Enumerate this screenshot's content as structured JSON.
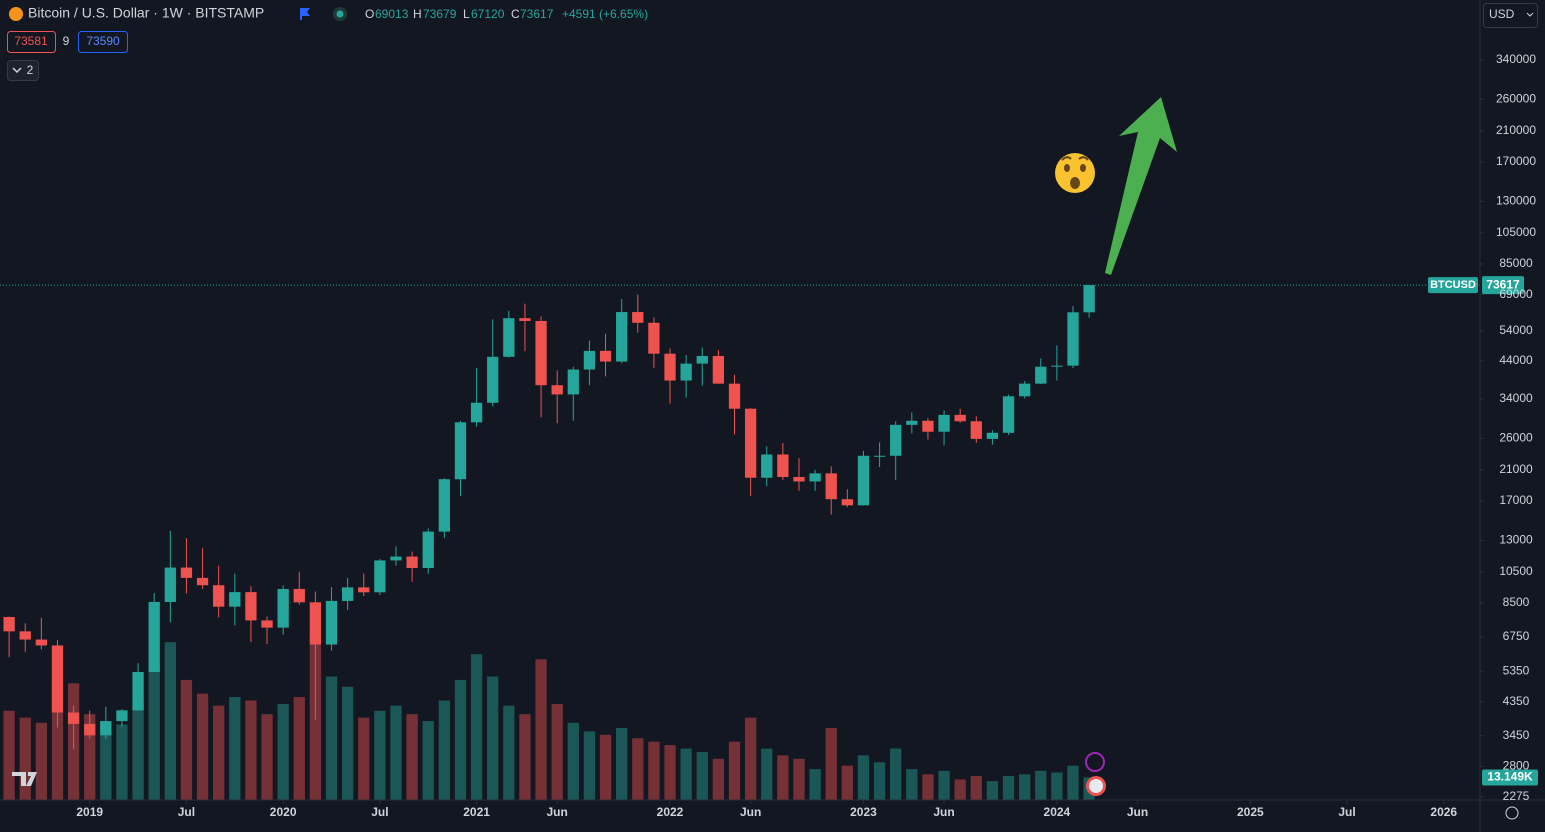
{
  "chart_data": {
    "type": "candlestick",
    "title": "Bitcoin / U.S. Dollar · 1W · BITSTAMP",
    "legend": [
      {
        "label": "O",
        "value": 69013
      },
      {
        "label": "H",
        "value": 73679
      },
      {
        "label": "L",
        "value": 67120
      },
      {
        "label": "C",
        "value": 73617
      }
    ],
    "change_label": "+4591 (+6.65%)",
    "bid": 73581,
    "spread": 9,
    "ask": 73590,
    "indicators_count": 2,
    "currency": "USD",
    "symbol": "BTCUSD",
    "last_price": 73617,
    "volume_label": "13.149K",
    "log_scale": true,
    "colors": {
      "up": "#26a69a",
      "down": "#ef5350"
    },
    "xlim": [
      "2018-07",
      "2026-03"
    ],
    "xticks": [
      {
        "value": "2019-01",
        "label": "2019"
      },
      {
        "value": "2019-07",
        "label": "Jul"
      },
      {
        "value": "2020-01",
        "label": "2020"
      },
      {
        "value": "2020-07",
        "label": "Jul"
      },
      {
        "value": "2021-01",
        "label": "2021"
      },
      {
        "value": "2021-06",
        "label": "Jun"
      },
      {
        "value": "2022-01",
        "label": "2022"
      },
      {
        "value": "2022-06",
        "label": "Jun"
      },
      {
        "value": "2023-01",
        "label": "2023"
      },
      {
        "value": "2023-06",
        "label": "Jun"
      },
      {
        "value": "2024-01",
        "label": "2024"
      },
      {
        "value": "2024-06",
        "label": "Jun"
      },
      {
        "value": "2025-01",
        "label": "2025"
      },
      {
        "value": "2025-07",
        "label": "Jul"
      },
      {
        "value": "2026-01",
        "label": "2026"
      }
    ],
    "ylim": [
      2230,
      422000
    ],
    "yticks": [
      340000,
      260000,
      210000,
      170000,
      130000,
      105000,
      85000,
      69000,
      54000,
      44000,
      34000,
      26000,
      21000,
      17000,
      13000,
      10500,
      8500,
      6750,
      5350,
      4350,
      3450,
      2800,
      2275
    ],
    "volume_ylim": [
      0,
      450000
    ],
    "x": [
      "2018-08",
      "2018-09",
      "2018-10",
      "2018-11",
      "2018-12",
      "2019-01",
      "2019-02",
      "2019-03",
      "2019-04",
      "2019-05",
      "2019-06",
      "2019-07",
      "2019-08",
      "2019-09",
      "2019-10",
      "2019-11",
      "2019-12",
      "2020-01",
      "2020-02",
      "2020-03",
      "2020-04",
      "2020-05",
      "2020-06",
      "2020-07",
      "2020-08",
      "2020-09",
      "2020-10",
      "2020-11",
      "2020-12",
      "2021-01",
      "2021-02",
      "2021-03",
      "2021-04",
      "2021-05",
      "2021-06",
      "2021-07",
      "2021-08",
      "2021-09",
      "2021-10",
      "2021-11",
      "2021-12",
      "2022-01",
      "2022-02",
      "2022-03",
      "2022-04",
      "2022-05",
      "2022-06",
      "2022-07",
      "2022-08",
      "2022-09",
      "2022-10",
      "2022-11",
      "2022-12",
      "2023-01",
      "2023-02",
      "2023-03",
      "2023-04",
      "2023-05",
      "2023-06",
      "2023-07",
      "2023-08",
      "2023-09",
      "2023-10",
      "2023-11",
      "2023-12",
      "2024-01",
      "2024-02",
      "2024-03"
    ],
    "open": [
      7730,
      7010,
      6630,
      6370,
      4040,
      3740,
      3460,
      3810,
      4100,
      5320,
      8560,
      10810,
      10080,
      9590,
      8290,
      9150,
      7550,
      7190,
      9350,
      8540,
      6410,
      8620,
      9450,
      9140,
      11350,
      11650,
      10780,
      13800,
      19700,
      28990,
      33110,
      45240,
      58800,
      57700,
      37300,
      35040,
      41500,
      47100,
      43800,
      61300,
      57000,
      46200,
      38500,
      43200,
      45500,
      37700,
      31800,
      19900,
      23300,
      20000,
      19400,
      20500,
      17200,
      16500,
      23100,
      23100,
      28500,
      29300,
      27200,
      30500,
      29200,
      25900,
      27000,
      34600,
      37700,
      42300,
      42600,
      61200
    ],
    "high": [
      7750,
      7400,
      7680,
      6600,
      4240,
      4090,
      4200,
      4140,
      5650,
      9090,
      13880,
      13200,
      12330,
      10950,
      10370,
      9530,
      7750,
      9590,
      10500,
      9190,
      9470,
      10070,
      10380,
      11450,
      12480,
      12050,
      14100,
      19860,
      29300,
      41950,
      58350,
      61780,
      64900,
      59500,
      41300,
      42300,
      50500,
      52900,
      67000,
      69000,
      59100,
      47900,
      45800,
      48200,
      47400,
      40000,
      31900,
      24600,
      25200,
      22700,
      21000,
      21500,
      18400,
      23900,
      25300,
      29200,
      31000,
      29800,
      31400,
      31800,
      30200,
      27500,
      35000,
      38400,
      44700,
      48900,
      63900,
      73679
    ],
    "low": [
      5880,
      6100,
      6200,
      3650,
      3150,
      3390,
      3380,
      3670,
      4090,
      5330,
      7450,
      9070,
      9350,
      7710,
      7300,
      6520,
      6430,
      6850,
      8410,
      3850,
      6150,
      8100,
      8910,
      8980,
      10950,
      9820,
      10370,
      13200,
      17600,
      28130,
      32300,
      45000,
      47000,
      30000,
      28800,
      29300,
      37300,
      39600,
      43300,
      53300,
      42000,
      32900,
      34300,
      37200,
      37700,
      26700,
      17600,
      18800,
      19600,
      18200,
      18200,
      15500,
      16300,
      16500,
      21400,
      19600,
      26900,
      25800,
      24800,
      28900,
      25200,
      24900,
      26600,
      34100,
      37600,
      38500,
      41900,
      59000
    ],
    "close": [
      7010,
      6630,
      6370,
      4040,
      3740,
      3460,
      3810,
      4100,
      5320,
      8560,
      10810,
      10080,
      9590,
      8290,
      9150,
      7550,
      7190,
      9350,
      8540,
      6410,
      8620,
      9450,
      9140,
      11350,
      11650,
      10780,
      13800,
      19700,
      28990,
      33110,
      45240,
      58800,
      57700,
      37300,
      35040,
      41500,
      47100,
      43800,
      61300,
      57000,
      46200,
      38500,
      43200,
      45500,
      37700,
      31800,
      19900,
      23300,
      20000,
      19400,
      20500,
      17200,
      16500,
      23100,
      23100,
      28500,
      29300,
      27200,
      30500,
      29200,
      25900,
      27000,
      34600,
      37700,
      42300,
      42600,
      61200,
      73617
    ],
    "volume": [
      52000,
      48000,
      45000,
      70000,
      68000,
      50000,
      46000,
      44000,
      58000,
      80000,
      92000,
      70000,
      62000,
      55000,
      60000,
      58000,
      50000,
      56000,
      60000,
      95000,
      72000,
      66000,
      48000,
      52000,
      55000,
      50000,
      46000,
      58000,
      70000,
      85000,
      72000,
      55000,
      50000,
      82000,
      56000,
      45000,
      40000,
      38000,
      42000,
      36000,
      34000,
      32000,
      30000,
      28000,
      24000,
      34000,
      48000,
      30000,
      26000,
      24000,
      18000,
      42000,
      20000,
      26000,
      22000,
      30000,
      18000,
      15000,
      17000,
      12000,
      14000,
      11000,
      14000,
      15000,
      17000,
      16000,
      20000,
      13149
    ]
  }
}
